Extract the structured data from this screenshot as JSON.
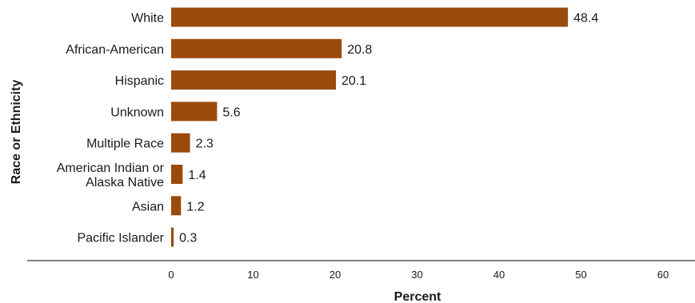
{
  "chart_data": {
    "type": "bar",
    "orientation": "horizontal",
    "categories": [
      [
        "White"
      ],
      [
        "African-American"
      ],
      [
        "Hispanic"
      ],
      [
        "Unknown"
      ],
      [
        "Multiple Race"
      ],
      [
        "American Indian or",
        "Alaska Native"
      ],
      [
        "Asian"
      ],
      [
        "Pacific Islander"
      ]
    ],
    "values": [
      48.4,
      20.8,
      20.1,
      5.6,
      2.3,
      1.4,
      1.2,
      0.3
    ],
    "value_labels": [
      "48.4",
      "20.8",
      "20.1",
      "5.6",
      "2.3",
      "1.4",
      "1.2",
      "0.3"
    ],
    "xlabel": "Percent",
    "ylabel": "Race or Ethnicity",
    "xlim": [
      0,
      60
    ],
    "xticks": [
      "0",
      "10",
      "20",
      "30",
      "40",
      "50",
      "60"
    ],
    "bar_color": "#9a4a0b",
    "grid": false
  }
}
